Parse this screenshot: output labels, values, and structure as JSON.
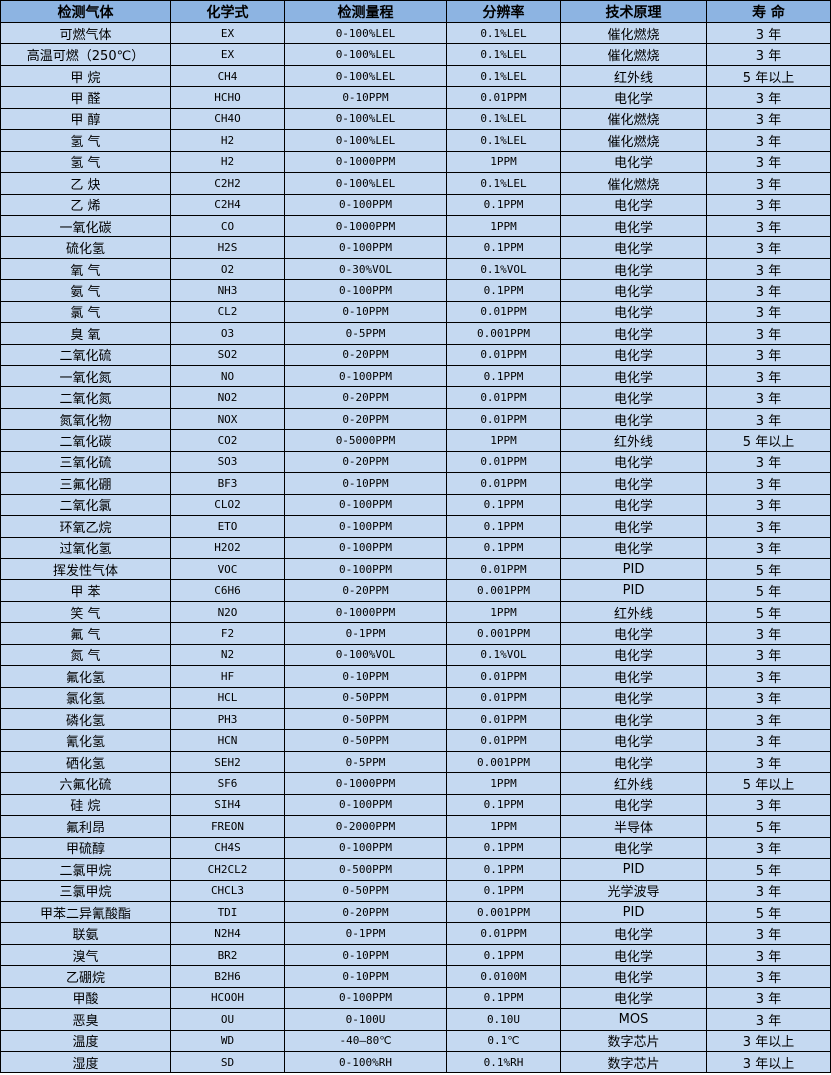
{
  "headers": [
    "检测气体",
    "化学式",
    "检测量程",
    "分辨率",
    "技术原理",
    "寿 命"
  ],
  "rows": [
    [
      "可燃气体",
      "EX",
      "0-100%LEL",
      "0.1%LEL",
      "催化燃烧",
      "3 年"
    ],
    [
      "高温可燃（250℃）",
      "EX",
      "0-100%LEL",
      "0.1%LEL",
      "催化燃烧",
      "3 年"
    ],
    [
      "甲 烷",
      "CH4",
      "0-100%LEL",
      "0.1%LEL",
      "红外线",
      "5 年以上"
    ],
    [
      "甲 醛",
      "HCHO",
      "0-10PPM",
      "0.01PPM",
      "电化学",
      "3 年"
    ],
    [
      "甲 醇",
      "CH4O",
      "0-100%LEL",
      "0.1%LEL",
      "催化燃烧",
      "3 年"
    ],
    [
      "氢 气",
      "H2",
      "0-100%LEL",
      "0.1%LEL",
      "催化燃烧",
      "3 年"
    ],
    [
      "氢 气",
      "H2",
      "0-1000PPM",
      "1PPM",
      "电化学",
      "3 年"
    ],
    [
      "乙 炔",
      "C2H2",
      "0-100%LEL",
      "0.1%LEL",
      "催化燃烧",
      "3 年"
    ],
    [
      "乙 烯",
      "C2H4",
      "0-100PPM",
      "0.1PPM",
      "电化学",
      "3 年"
    ],
    [
      "一氧化碳",
      "CO",
      "0-1000PPM",
      "1PPM",
      "电化学",
      "3 年"
    ],
    [
      "硫化氢",
      "H2S",
      "0-100PPM",
      "0.1PPM",
      "电化学",
      "3 年"
    ],
    [
      "氧 气",
      "O2",
      "0-30%VOL",
      "0.1%VOL",
      "电化学",
      "3 年"
    ],
    [
      "氨 气",
      "NH3",
      "0-100PPM",
      "0.1PPM",
      "电化学",
      "3 年"
    ],
    [
      "氯 气",
      "CL2",
      "0-10PPM",
      "0.01PPM",
      "电化学",
      "3 年"
    ],
    [
      "臭 氧",
      "O3",
      "0-5PPM",
      "0.001PPM",
      "电化学",
      "3 年"
    ],
    [
      "二氧化硫",
      "SO2",
      "0-20PPM",
      "0.01PPM",
      "电化学",
      "3 年"
    ],
    [
      "一氧化氮",
      "NO",
      "0-100PPM",
      "0.1PPM",
      "电化学",
      "3 年"
    ],
    [
      "二氧化氮",
      "NO2",
      "0-20PPM",
      "0.01PPM",
      "电化学",
      "3 年"
    ],
    [
      "氮氧化物",
      "NOX",
      "0-20PPM",
      "0.01PPM",
      "电化学",
      "3 年"
    ],
    [
      "二氧化碳",
      "CO2",
      "0-5000PPM",
      "1PPM",
      "红外线",
      "5 年以上"
    ],
    [
      "三氧化硫",
      "SO3",
      "0-20PPM",
      "0.01PPM",
      "电化学",
      "3 年"
    ],
    [
      "三氟化硼",
      "BF3",
      "0-10PPM",
      "0.01PPM",
      "电化学",
      "3 年"
    ],
    [
      "二氧化氯",
      "CLO2",
      "0-100PPM",
      "0.1PPM",
      "电化学",
      "3 年"
    ],
    [
      "环氧乙烷",
      "ETO",
      "0-100PPM",
      "0.1PPM",
      "电化学",
      "3 年"
    ],
    [
      "过氧化氢",
      "H2O2",
      "0-100PPM",
      "0.1PPM",
      "电化学",
      "3 年"
    ],
    [
      "挥发性气体",
      "VOC",
      "0-100PPM",
      "0.01PPM",
      "PID",
      "5 年"
    ],
    [
      "甲 苯",
      "C6H6",
      "0-20PPM",
      "0.001PPM",
      "PID",
      "5 年"
    ],
    [
      "笑 气",
      "N2O",
      "0-1000PPM",
      "1PPM",
      "红外线",
      "5 年"
    ],
    [
      "氟 气",
      "F2",
      "0-1PPM",
      "0.001PPM",
      "电化学",
      "3 年"
    ],
    [
      "氮 气",
      "N2",
      "0-100%VOL",
      "0.1%VOL",
      "电化学",
      "3 年"
    ],
    [
      "氟化氢",
      "HF",
      "0-10PPM",
      "0.01PPM",
      "电化学",
      "3 年"
    ],
    [
      "氯化氢",
      "HCL",
      "0-50PPM",
      "0.01PPM",
      "电化学",
      "3 年"
    ],
    [
      "磷化氢",
      "PH3",
      "0-50PPM",
      "0.01PPM",
      "电化学",
      "3 年"
    ],
    [
      "氰化氢",
      "HCN",
      "0-50PPM",
      "0.01PPM",
      "电化学",
      "3 年"
    ],
    [
      "硒化氢",
      "SEH2",
      "0-5PPM",
      "0.001PPM",
      "电化学",
      "3 年"
    ],
    [
      "六氟化硫",
      "SF6",
      "0-1000PPM",
      "1PPM",
      "红外线",
      "5 年以上"
    ],
    [
      "硅 烷",
      "SIH4",
      "0-100PPM",
      "0.1PPM",
      "电化学",
      "3 年"
    ],
    [
      "氟利昂",
      "FREON",
      "0-2000PPM",
      "1PPM",
      "半导体",
      "5 年"
    ],
    [
      "甲硫醇",
      "CH4S",
      "0-100PPM",
      "0.1PPM",
      "电化学",
      "3 年"
    ],
    [
      "二氯甲烷",
      "CH2CL2",
      "0-500PPM",
      "0.1PPM",
      "PID",
      "5 年"
    ],
    [
      "三氯甲烷",
      "CHCL3",
      "0-50PPM",
      "0.1PPM",
      "光学波导",
      "3 年"
    ],
    [
      "甲苯二异氰酸酯",
      "TDI",
      "0-20PPM",
      "0.001PPM",
      "PID",
      "5 年"
    ],
    [
      "联氨",
      "N2H4",
      "0-1PPM",
      "0.01PPM",
      "电化学",
      "3 年"
    ],
    [
      "溴气",
      "BR2",
      "0-10PPM",
      "0.1PPM",
      "电化学",
      "3 年"
    ],
    [
      "乙硼烷",
      "B2H6",
      "0-10PPM",
      "0.0100M",
      "电化学",
      "3 年"
    ],
    [
      "甲酸",
      "HCOOH",
      "0-100PPM",
      "0.1PPM",
      "电化学",
      "3 年"
    ],
    [
      "恶臭",
      "OU",
      "0-100U",
      "0.10U",
      "MOS",
      "3 年"
    ],
    [
      "温度",
      "WD",
      "-40—80℃",
      "0.1℃",
      "数字芯片",
      "3 年以上"
    ],
    [
      "湿度",
      "SD",
      "0-100%RH",
      "0.1%RH",
      "数字芯片",
      "3 年以上"
    ]
  ],
  "colors": {
    "header_bg": "#8db4e2",
    "row_bg": "#c5d9f1"
  }
}
